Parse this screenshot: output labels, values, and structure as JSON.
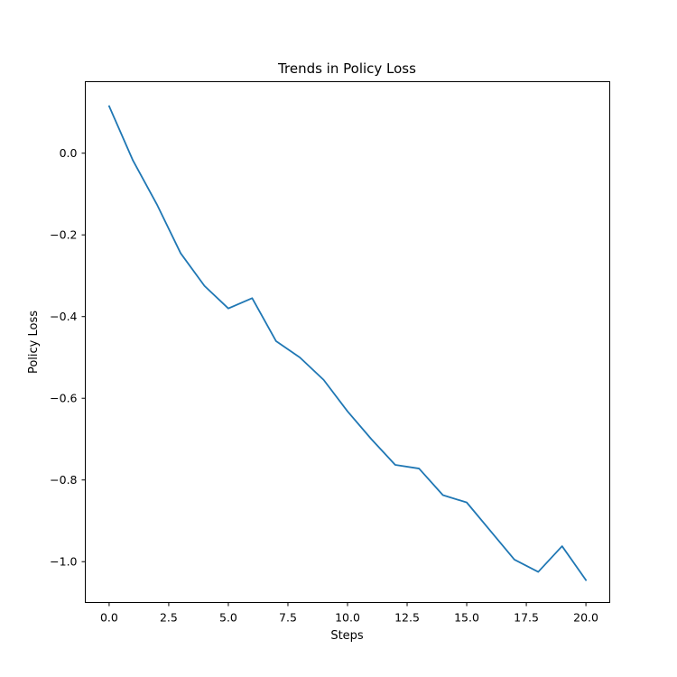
{
  "chart_data": {
    "type": "line",
    "title": "Trends in Policy Loss",
    "xlabel": "Steps",
    "ylabel": "Policy Loss",
    "xlim": [
      -1.0,
      21.0
    ],
    "ylim": [
      -1.1,
      0.175
    ],
    "xticks": [
      0.0,
      2.5,
      5.0,
      7.5,
      10.0,
      12.5,
      15.0,
      17.5,
      20.0
    ],
    "xtick_labels": [
      "0.0",
      "2.5",
      "5.0",
      "7.5",
      "10.0",
      "12.5",
      "15.0",
      "17.5",
      "20.0"
    ],
    "yticks": [
      0.0,
      -0.2,
      -0.4,
      -0.6,
      -0.8,
      -1.0
    ],
    "ytick_labels": [
      "0.0",
      "−0.2",
      "−0.4",
      "−0.6",
      "−0.8",
      "−1.0"
    ],
    "grid": false,
    "line_color": "#1f77b4",
    "series": [
      {
        "x": [
          0,
          1,
          2,
          3,
          4,
          5,
          6,
          7,
          8,
          9,
          10,
          11,
          12,
          13,
          14,
          15,
          16,
          17,
          18,
          19,
          20
        ],
        "values": [
          0.115,
          -0.018,
          -0.125,
          -0.245,
          -0.325,
          -0.38,
          -0.355,
          -0.46,
          -0.5,
          -0.555,
          -0.632,
          -0.7,
          -0.763,
          -0.772,
          -0.837,
          -0.855,
          -0.925,
          -0.995,
          -1.025,
          -0.962,
          -1.045
        ]
      }
    ]
  }
}
